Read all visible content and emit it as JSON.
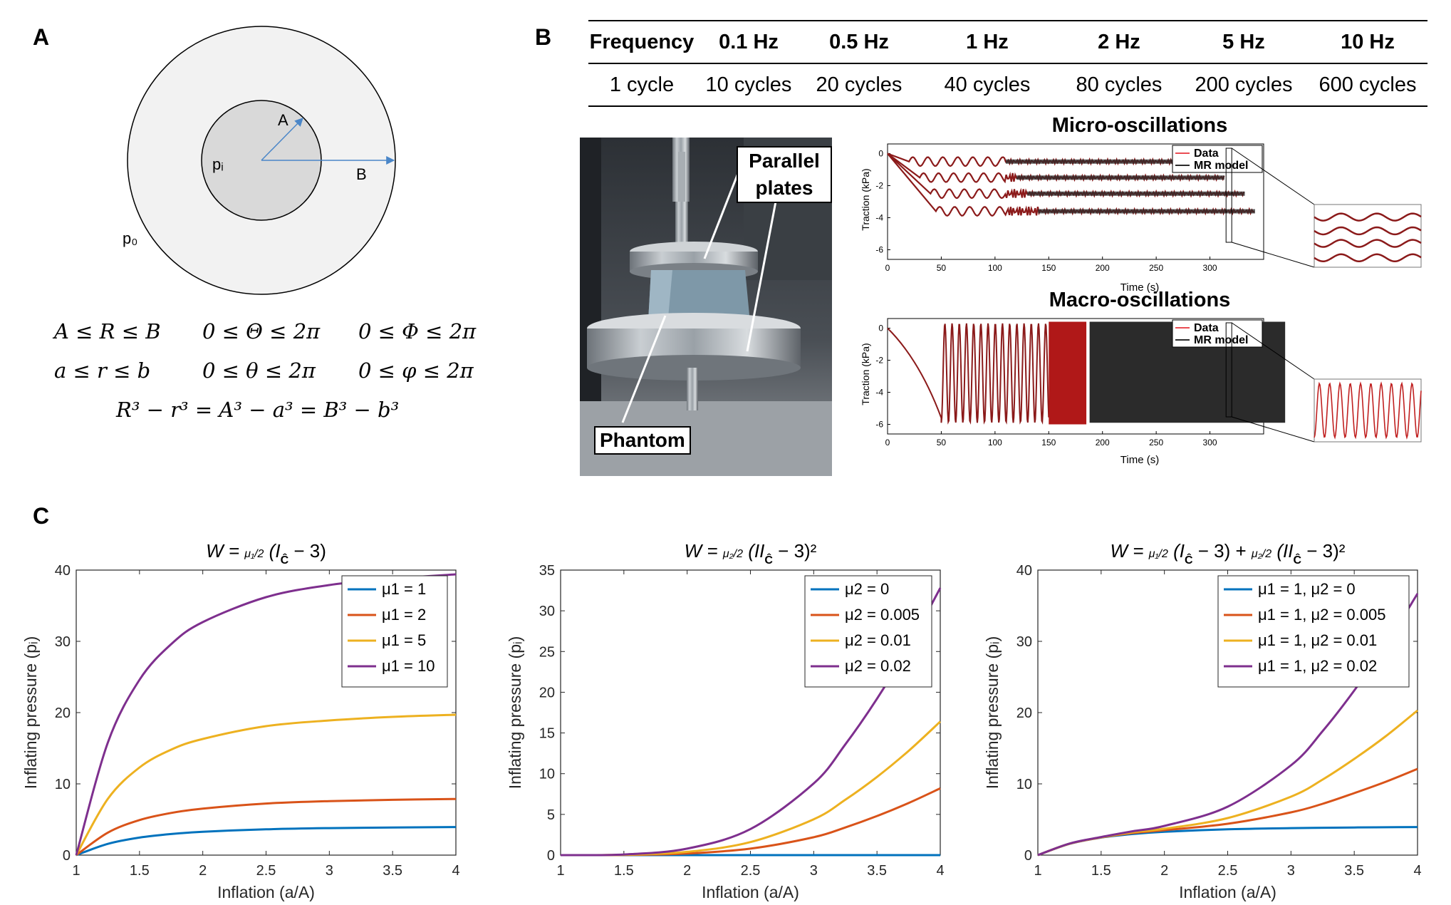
{
  "panel_labels": {
    "a": "A",
    "b": "B",
    "c": "C"
  },
  "panelA": {
    "labels": {
      "inner_radius": "A",
      "outer_radius": "B",
      "inner_pressure": "pᵢ",
      "outer_pressure": "p₀"
    },
    "equations": {
      "row1": [
        "A ≤ R ≤ B",
        "0 ≤ Θ ≤ 2π",
        "0 ≤ Φ ≤ 2π"
      ],
      "row2": [
        "a ≤ r ≤ b",
        "0 ≤ θ ≤ 2π",
        "0 ≤ φ ≤ 2π"
      ],
      "row3": "R³ − r³ = A³ − a³ = B³ − b³"
    }
  },
  "panelB": {
    "table": {
      "header": [
        "Frequency",
        "0.1 Hz",
        "0.5 Hz",
        "1 Hz",
        "2 Hz",
        "5 Hz",
        "10 Hz"
      ],
      "cycles": [
        "1 cycle",
        "10 cycles",
        "20 cycles",
        "40 cycles",
        "80 cycles",
        "200 cycles",
        "600 cycles"
      ]
    },
    "photo_labels": {
      "plates": "Parallel plates",
      "phantom": "Phantom"
    },
    "colors": {
      "data": "#e3121b",
      "model": "#2b2b2b",
      "model_micro": "#8b1a1a"
    },
    "micro": {
      "title": "Micro-oscillations",
      "xlabel": "Time (s)",
      "ylabel": "Traction (kPa)",
      "xticks": [
        "0",
        "50",
        "100",
        "150",
        "200",
        "250",
        "300"
      ],
      "yticks": [
        "0",
        "-2",
        "-4",
        "-6"
      ],
      "legend": [
        "Data",
        "MR model"
      ]
    },
    "macro": {
      "title": "Macro-oscillations",
      "xlabel": "Time (s)",
      "ylabel": "Traction (kPa)",
      "xticks": [
        "0",
        "50",
        "100",
        "150",
        "200",
        "250",
        "300"
      ],
      "yticks": [
        "0",
        "-2",
        "-4",
        "-6"
      ],
      "legend": [
        "Data",
        "MR model"
      ]
    }
  },
  "chart_data": [
    {
      "type": "line",
      "title": "W = μ1/2 (I_Ĉ − 3)",
      "xlabel": "Inflation (a/A)",
      "ylabel": "Inflating pressure (pᵢ)",
      "xlim": [
        1,
        4
      ],
      "ylim": [
        0,
        40
      ],
      "xticks": [
        "1",
        "1.5",
        "2",
        "2.5",
        "3",
        "3.5",
        "4"
      ],
      "yticks": [
        "0",
        "10",
        "20",
        "30",
        "40"
      ],
      "x": [
        1,
        1.25,
        1.5,
        1.75,
        2,
        2.5,
        3,
        3.5,
        4
      ],
      "series": [
        {
          "name": "μ1 = 1",
          "color": "#0072bd",
          "values": [
            0,
            1.58,
            2.46,
            2.96,
            3.27,
            3.62,
            3.79,
            3.88,
            3.94
          ]
        },
        {
          "name": "μ1 = 2",
          "color": "#d95319",
          "values": [
            0,
            3.16,
            4.92,
            5.92,
            6.53,
            7.24,
            7.58,
            7.76,
            7.88
          ]
        },
        {
          "name": "μ1 = 5",
          "color": "#edb120",
          "values": [
            0,
            7.9,
            12.3,
            14.8,
            16.3,
            18.1,
            18.9,
            19.4,
            19.7
          ]
        },
        {
          "name": "μ1 = 10",
          "color": "#7e2f8e",
          "values": [
            0,
            15.8,
            24.6,
            29.6,
            32.7,
            36.2,
            37.9,
            38.8,
            39.4
          ]
        }
      ]
    },
    {
      "type": "line",
      "title": "W = μ2/2 (II_Ĉ − 3)²",
      "xlabel": "Inflation (a/A)",
      "ylabel": "Inflating pressure (pᵢ)",
      "xlim": [
        1,
        4
      ],
      "ylim": [
        0,
        35
      ],
      "xticks": [
        "1",
        "1.5",
        "2",
        "2.5",
        "3",
        "3.5",
        "4"
      ],
      "yticks": [
        "0",
        "5",
        "10",
        "15",
        "20",
        "25",
        "30",
        "35"
      ],
      "x": [
        1,
        1.5,
        2,
        2.5,
        3,
        3.25,
        3.5,
        3.75,
        4
      ],
      "series": [
        {
          "name": "μ2 = 0",
          "color": "#0072bd",
          "values": [
            0,
            0,
            0,
            0,
            0,
            0,
            0,
            0,
            0
          ]
        },
        {
          "name": "μ2 = 0.005",
          "color": "#d95319",
          "values": [
            0,
            0.02,
            0.2,
            0.8,
            2.2,
            3.4,
            4.8,
            6.4,
            8.2
          ]
        },
        {
          "name": "μ2 = 0.01",
          "color": "#edb120",
          "values": [
            0,
            0.04,
            0.4,
            1.6,
            4.4,
            6.8,
            9.6,
            12.8,
            16.4
          ]
        },
        {
          "name": "μ2 = 0.02",
          "color": "#7e2f8e",
          "values": [
            0,
            0.08,
            0.8,
            3.2,
            8.8,
            13.6,
            19.2,
            25.6,
            32.8
          ]
        }
      ]
    },
    {
      "type": "line",
      "title": "W = μ1/2 (I_Ĉ − 3) + μ2/2 (II_Ĉ − 3)²",
      "xlabel": "Inflation (a/A)",
      "ylabel": "Inflating pressure (pᵢ)",
      "xlim": [
        1,
        4
      ],
      "ylim": [
        0,
        40
      ],
      "xticks": [
        "1",
        "1.5",
        "2",
        "2.5",
        "3",
        "3.5",
        "4"
      ],
      "yticks": [
        "0",
        "10",
        "20",
        "30",
        "40"
      ],
      "x": [
        1,
        1.25,
        1.5,
        1.75,
        2,
        2.5,
        3,
        3.25,
        3.5,
        3.75,
        4
      ],
      "series": [
        {
          "name": "μ1 = 1, μ2 = 0",
          "color": "#0072bd",
          "values": [
            0,
            1.58,
            2.46,
            2.96,
            3.27,
            3.62,
            3.79,
            3.84,
            3.88,
            3.91,
            3.94
          ]
        },
        {
          "name": "μ1 = 1, μ2 = 0.005",
          "color": "#d95319",
          "values": [
            0,
            1.59,
            2.48,
            3.1,
            3.5,
            4.4,
            6.0,
            7.2,
            8.7,
            10.3,
            12.1
          ]
        },
        {
          "name": "μ1 = 1, μ2 = 0.01",
          "color": "#edb120",
          "values": [
            0,
            1.6,
            2.5,
            3.2,
            3.7,
            5.2,
            8.2,
            10.6,
            13.5,
            16.7,
            20.3
          ]
        },
        {
          "name": "μ1 = 1, μ2 = 0.02",
          "color": "#7e2f8e",
          "values": [
            0,
            1.62,
            2.54,
            3.35,
            4.1,
            6.8,
            12.6,
            17.4,
            23.1,
            29.5,
            36.7
          ]
        }
      ]
    }
  ]
}
